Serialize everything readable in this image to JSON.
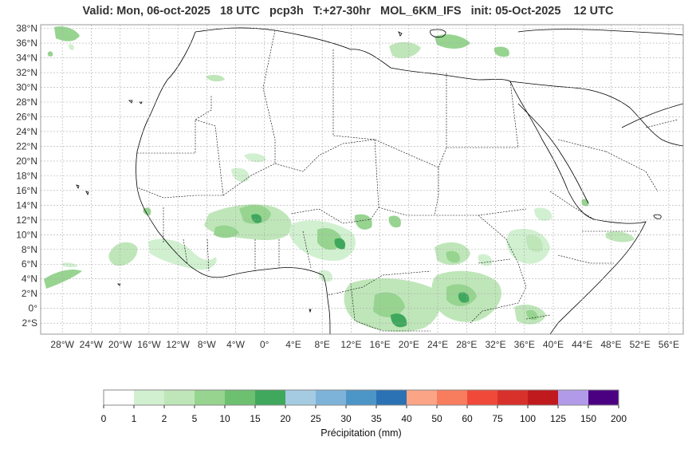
{
  "title": "Valid: Mon, 06-oct-2025   18 UTC   pcp3h   T:+27-30hr   MOL_6KM_IFS   init: 05-Oct-2025    12 UTC",
  "map": {
    "extent": {
      "lon_min": -31,
      "lon_max": 58,
      "lat_min": -3.5,
      "lat_max": 38.5
    },
    "lat_ticks": [
      {
        "value": 38,
        "label": "38°N"
      },
      {
        "value": 36,
        "label": "36°N"
      },
      {
        "value": 34,
        "label": "34°N"
      },
      {
        "value": 32,
        "label": "32°N"
      },
      {
        "value": 30,
        "label": "30°N"
      },
      {
        "value": 28,
        "label": "28°N"
      },
      {
        "value": 26,
        "label": "26°N"
      },
      {
        "value": 24,
        "label": "24°N"
      },
      {
        "value": 22,
        "label": "22°N"
      },
      {
        "value": 20,
        "label": "20°N"
      },
      {
        "value": 18,
        "label": "18°N"
      },
      {
        "value": 16,
        "label": "16°N"
      },
      {
        "value": 14,
        "label": "14°N"
      },
      {
        "value": 12,
        "label": "12°N"
      },
      {
        "value": 10,
        "label": "10°N"
      },
      {
        "value": 8,
        "label": "8°N"
      },
      {
        "value": 6,
        "label": "6°N"
      },
      {
        "value": 4,
        "label": "4°N"
      },
      {
        "value": 2,
        "label": "2°N"
      },
      {
        "value": 0,
        "label": "0°"
      },
      {
        "value": -2,
        "label": "2°S"
      }
    ],
    "lon_ticks": [
      {
        "value": -28,
        "label": "28°W"
      },
      {
        "value": -24,
        "label": "24°W"
      },
      {
        "value": -20,
        "label": "20°W"
      },
      {
        "value": -16,
        "label": "16°W"
      },
      {
        "value": -12,
        "label": "12°W"
      },
      {
        "value": -8,
        "label": "8°W"
      },
      {
        "value": -4,
        "label": "4°W"
      },
      {
        "value": 0,
        "label": "0°"
      },
      {
        "value": 4,
        "label": "4°E"
      },
      {
        "value": 8,
        "label": "8°E"
      },
      {
        "value": 12,
        "label": "12°E"
      },
      {
        "value": 16,
        "label": "16°E"
      },
      {
        "value": 20,
        "label": "20°E"
      },
      {
        "value": 24,
        "label": "24°E"
      },
      {
        "value": 28,
        "label": "28°E"
      },
      {
        "value": 32,
        "label": "32°E"
      },
      {
        "value": 36,
        "label": "36°E"
      },
      {
        "value": 40,
        "label": "40°E"
      },
      {
        "value": 44,
        "label": "44°E"
      },
      {
        "value": 48,
        "label": "48°E"
      },
      {
        "value": 52,
        "label": "52°E"
      },
      {
        "value": 56,
        "label": "56°E"
      }
    ],
    "grid": true,
    "coastline_color": "#000000",
    "border_color": "#000000"
  },
  "colorbar": {
    "label": "Précipitation (mm)",
    "ticks": [
      "0",
      "1",
      "2",
      "5",
      "10",
      "15",
      "20",
      "25",
      "30",
      "35",
      "40",
      "50",
      "60",
      "75",
      "100",
      "125",
      "150",
      "200"
    ],
    "colors": [
      "#ffffff",
      "#d1f0d0",
      "#bfe6b9",
      "#96d490",
      "#6cc070",
      "#3fa85d",
      "#a4cbe2",
      "#7db3d9",
      "#4c95c7",
      "#2a72b3",
      "#fca486",
      "#f87c5e",
      "#f0493a",
      "#d8302b",
      "#c0191e",
      "#b19be8",
      "#4b0082"
    ]
  }
}
